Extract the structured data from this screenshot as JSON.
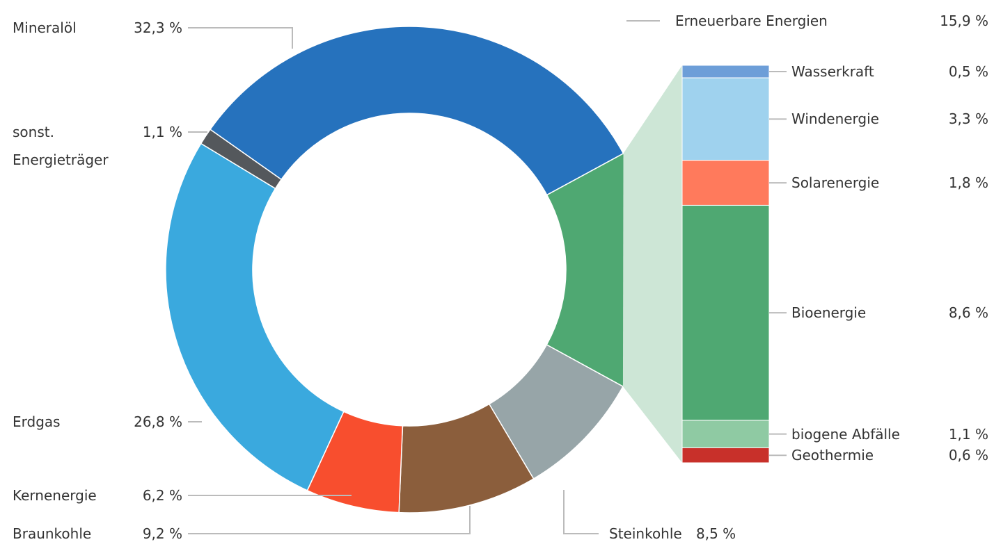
{
  "chart_data": {
    "type": "pie-of-bar",
    "categories": [
      "Mineralöl",
      "Erneuerbare Energien",
      "Steinkohle",
      "Braunkohle",
      "Kernenergie",
      "Erdgas",
      "sonst. Energieträger"
    ],
    "values": [
      32.3,
      15.9,
      8.5,
      9.2,
      6.2,
      26.8,
      1.1
    ],
    "value_labels": [
      "32,3 %",
      "15,9 %",
      "8,5 %",
      "9,2 %",
      "6,2 %",
      "26,8 %",
      "1,1 %"
    ],
    "colors": [
      "#2672bd",
      "#4fa872",
      "#97a5a8",
      "#8b5e3c",
      "#f84e2e",
      "#3aa9de",
      "#54585c"
    ],
    "breakdown": {
      "categories": [
        "Wasserkraft",
        "Windenergie",
        "Solarenergie",
        "Bioenergie",
        "biogene Abfälle",
        "Geothermie"
      ],
      "values": [
        0.5,
        3.3,
        1.8,
        8.6,
        1.1,
        0.6
      ],
      "value_labels": [
        "0,5 %",
        "3,3 %",
        "1,8 %",
        "8,6 %",
        "1,1 %",
        "0,6 %"
      ],
      "colors": [
        "#6d9ed8",
        "#9fd2ee",
        "#ff7a5c",
        "#4fa872",
        "#8fcaa3",
        "#c8302a"
      ]
    }
  }
}
